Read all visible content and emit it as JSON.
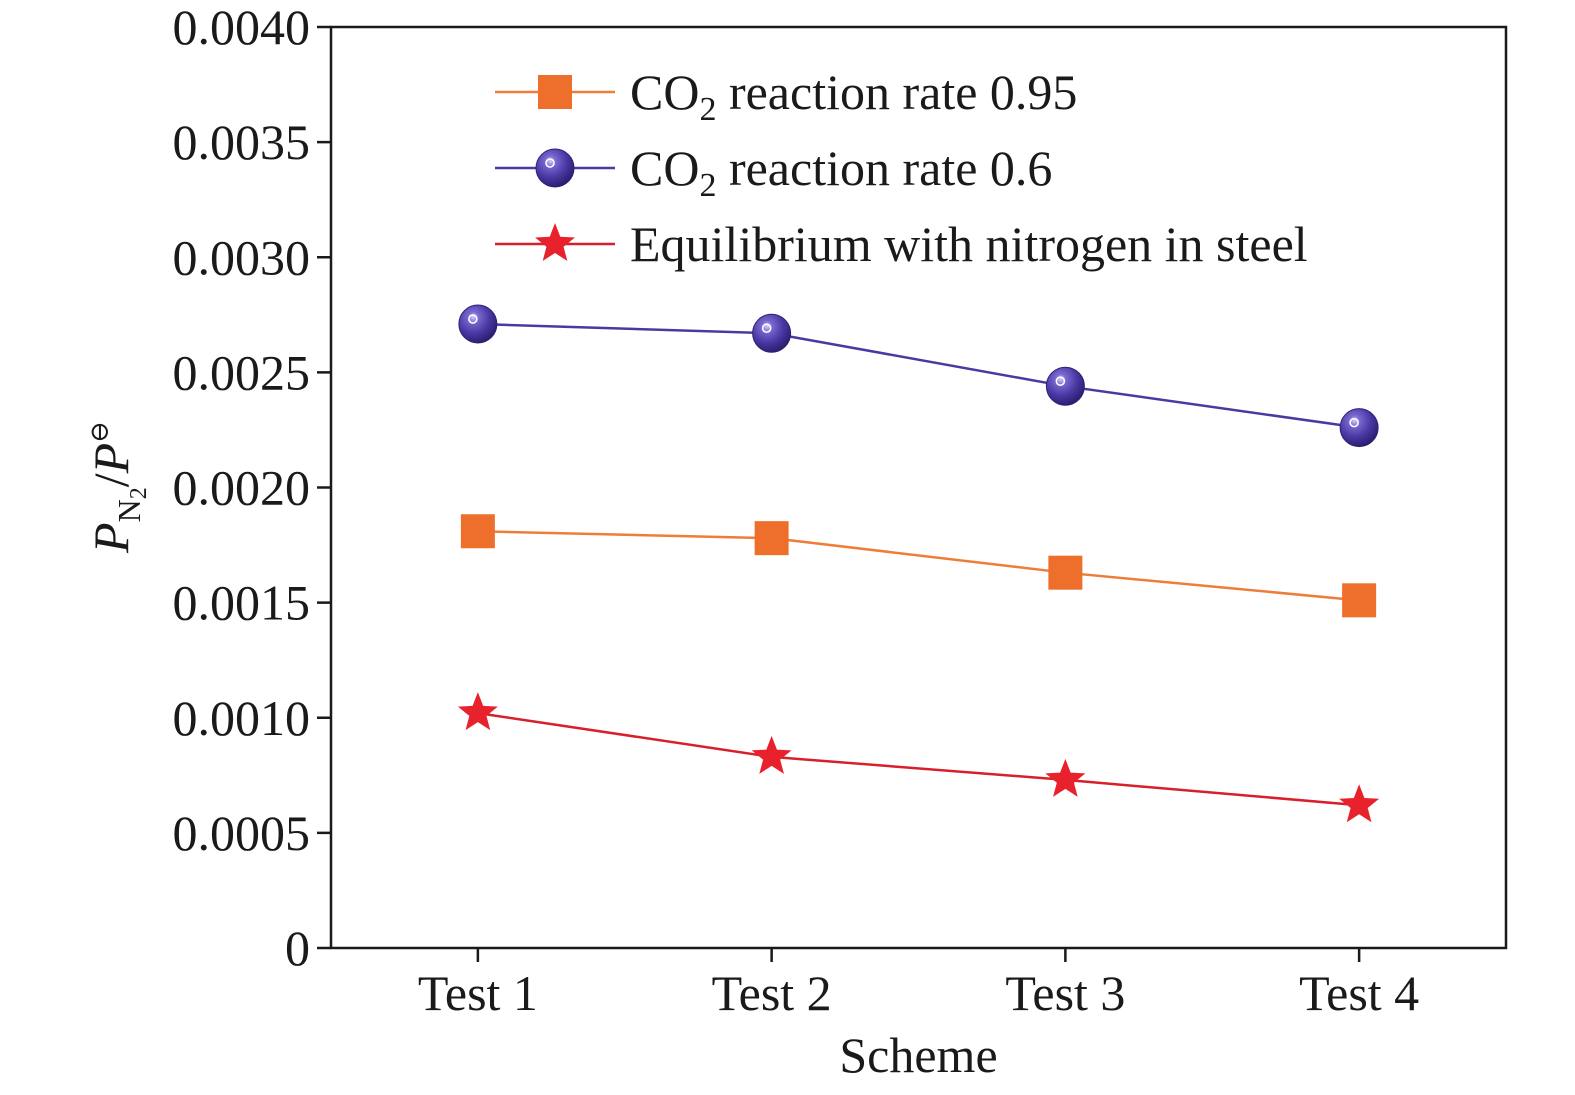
{
  "chart_data": {
    "type": "line",
    "xlabel": "Scheme",
    "ylabel": {
      "base": "P",
      "subscript_main": "N",
      "subscript_inner": "2",
      "separator": "/",
      "denominator": "P",
      "superscript": "⊖"
    },
    "categories": [
      "Test 1",
      "Test 2",
      "Test 3",
      "Test 4"
    ],
    "ylim": [
      0,
      0.004
    ],
    "yticks": [
      0,
      0.0005,
      0.001,
      0.0015,
      0.002,
      0.0025,
      0.003,
      0.0035,
      0.004
    ],
    "ytick_labels": [
      "0",
      "0.0005",
      "0.0010",
      "0.0015",
      "0.0020",
      "0.0025",
      "0.0030",
      "0.0035",
      "0.0040"
    ],
    "grid": false,
    "legend_position": "top-right",
    "series": [
      {
        "name": "CO2 reaction rate 0.95",
        "legend_parts": [
          "CO",
          "2",
          " reaction rate 0.95"
        ],
        "marker": "square",
        "color": "#ee6f2b",
        "line_color": "#ee7d3a",
        "values": [
          0.00181,
          0.00178,
          0.00163,
          0.00151
        ]
      },
      {
        "name": "CO2 reaction rate 0.6",
        "legend_parts": [
          "CO",
          "2",
          " reaction rate 0.6"
        ],
        "marker": "sphere",
        "color": "#4b3ba6",
        "line_color": "#4a3aa0",
        "values": [
          0.00271,
          0.00267,
          0.00244,
          0.00226
        ]
      },
      {
        "name": "Equilibrium with nitrogen in steel",
        "legend_parts": [
          "Equilibrium with nitrogen in steel",
          "",
          ""
        ],
        "marker": "star",
        "color": "#e8222c",
        "line_color": "#d8202a",
        "values": [
          0.00102,
          0.00083,
          0.00073,
          0.00062
        ]
      }
    ]
  }
}
